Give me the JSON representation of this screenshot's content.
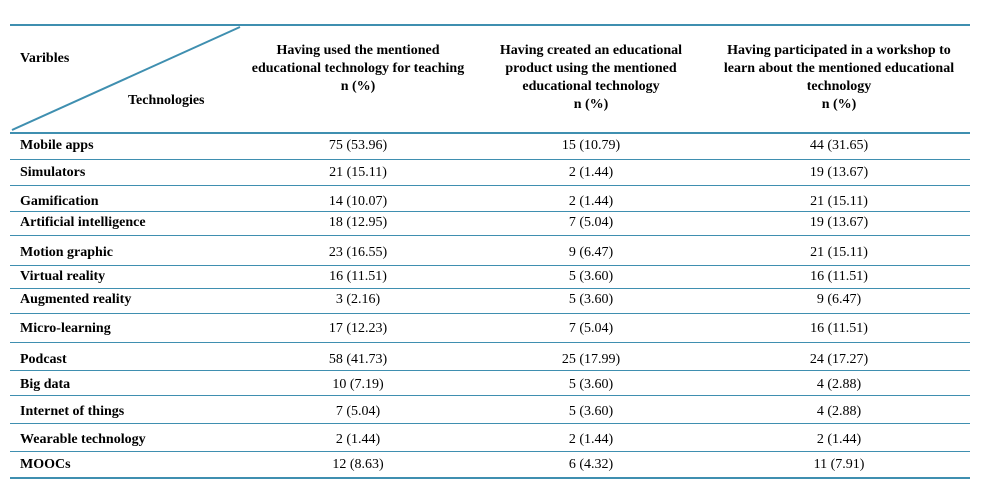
{
  "header": {
    "varibles": "Varibles",
    "technologies": "Technologies",
    "col1": "Having used the mentioned educational technology for teaching",
    "col2": "Having created an educational product using the mentioned educational technology",
    "col3": "Having participated in a workshop to learn about the mentioned educational technology",
    "unit": "n (%)"
  },
  "rows": [
    {
      "label": "Mobile apps",
      "c1": "75 (53.96)",
      "c2": "15 (10.79)",
      "c3": "44 (31.65)"
    },
    {
      "label": "Simulators",
      "c1": "21 (15.11)",
      "c2": "2 (1.44)",
      "c3": "19 (13.67)"
    },
    {
      "label": "Gamification",
      "c1": "14 (10.07)",
      "c2": "2 (1.44)",
      "c3": "21 (15.11)"
    },
    {
      "label": "Artificial intelligence",
      "c1": "18 (12.95)",
      "c2": "7 (5.04)",
      "c3": "19 (13.67)"
    },
    {
      "label": "Motion graphic",
      "c1": "23 (16.55)",
      "c2": "9 (6.47)",
      "c3": "21 (15.11)"
    },
    {
      "label": "Virtual reality",
      "c1": "16 (11.51)",
      "c2": "5 (3.60)",
      "c3": "16 (11.51)"
    },
    {
      "label": "Augmented reality",
      "c1": "3 (2.16)",
      "c2": "5 (3.60)",
      "c3": "9 (6.47)"
    },
    {
      "label": "Micro-learning",
      "c1": "17 (12.23)",
      "c2": "7 (5.04)",
      "c3": "16 (11.51)"
    },
    {
      "label": "Podcast",
      "c1": "58 (41.73)",
      "c2": "25 (17.99)",
      "c3": "24 (17.27)"
    },
    {
      "label": "Big data",
      "c1": "10 (7.19)",
      "c2": "5 (3.60)",
      "c3": "4 (2.88)"
    },
    {
      "label": "Internet of things",
      "c1": "7 (5.04)",
      "c2": "5 (3.60)",
      "c3": "4 (2.88)"
    },
    {
      "label": "Wearable technology",
      "c1": "2 (1.44)",
      "c2": "2 (1.44)",
      "c3": "2 (1.44)"
    },
    {
      "label": "MOOCs",
      "c1": "12 (8.63)",
      "c2": "6 (4.32)",
      "c3": "11 (7.91)"
    }
  ],
  "colors": {
    "rule": "#3f8fb0"
  }
}
